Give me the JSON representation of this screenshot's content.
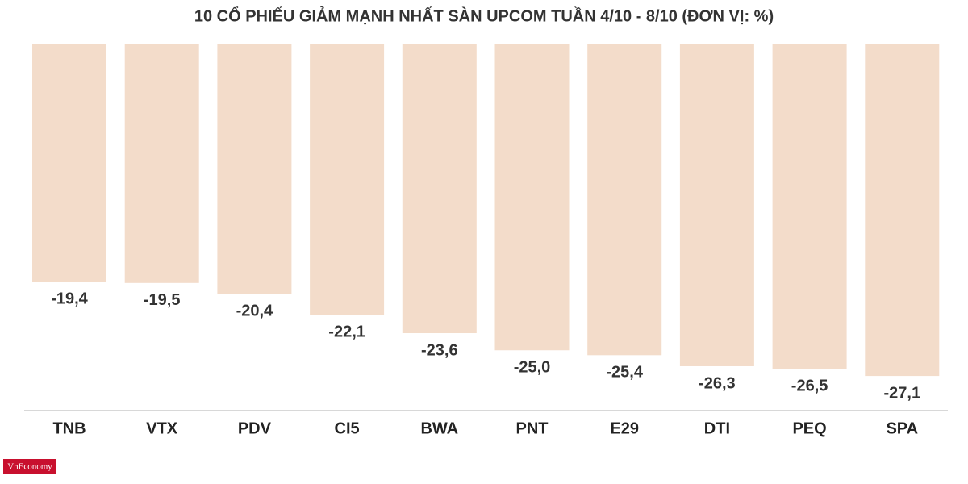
{
  "chart_data": {
    "type": "bar",
    "title": "10 CỔ PHIẾU GIẢM MẠNH NHẤT SÀN UPCOM TUẦN 4/10 - 8/10 (ĐƠN VỊ: %)",
    "categories": [
      "TNB",
      "VTX",
      "PDV",
      "CI5",
      "BWA",
      "PNT",
      "E29",
      "DTI",
      "PEQ",
      "SPA"
    ],
    "values": [
      -19.4,
      -19.5,
      -20.4,
      -22.1,
      -23.6,
      -25.0,
      -25.4,
      -26.3,
      -26.5,
      -27.1
    ],
    "value_labels": [
      "-19,4",
      "-19,5",
      "-20,4",
      "-22,1",
      "-23,6",
      "-25,0",
      "-25,4",
      "-26,3",
      "-26,5",
      "-27,1"
    ],
    "color": "#f3dcca"
  },
  "logo": "VnEconomy"
}
